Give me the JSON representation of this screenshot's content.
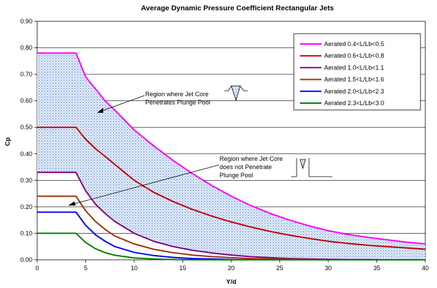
{
  "chart_data": {
    "type": "line",
    "title": "Average Dynamic Pressure Coefficient Rectangular Jets",
    "xlabel": "Y/d",
    "ylabel": "Cp",
    "xlim": [
      0,
      40
    ],
    "ylim": [
      0,
      0.9
    ],
    "xticks": [
      0,
      5,
      10,
      15,
      20,
      25,
      30,
      35,
      40
    ],
    "yticks": [
      0.0,
      0.1,
      0.2,
      0.3,
      0.4,
      0.5,
      0.6,
      0.7,
      0.8,
      0.9
    ],
    "ytick_labels": [
      "0.00",
      "0.10",
      "0.20",
      "0.30",
      "0.40",
      "0.50",
      "0.60",
      "0.70",
      "0.80",
      "0.90"
    ],
    "grid": "horizontal",
    "legend_position": "top-right",
    "x": [
      0,
      4,
      5,
      6,
      7,
      8,
      10,
      12,
      14,
      16,
      18,
      20,
      22,
      24,
      26,
      28,
      30,
      32,
      34,
      36,
      38,
      40
    ],
    "series": [
      {
        "name": "Aerated 0.4<L/Lb<0.5",
        "color": "#ff00ff",
        "values": [
          0.78,
          0.78,
          0.69,
          0.645,
          0.6,
          0.565,
          0.49,
          0.43,
          0.375,
          0.325,
          0.28,
          0.24,
          0.205,
          0.175,
          0.15,
          0.128,
          0.11,
          0.096,
          0.085,
          0.076,
          0.067,
          0.06
        ]
      },
      {
        "name": "Aerated 0.6<L/Lb<0.8",
        "color": "#c00000",
        "values": [
          0.5,
          0.5,
          0.455,
          0.42,
          0.39,
          0.36,
          0.3,
          0.255,
          0.22,
          0.19,
          0.165,
          0.143,
          0.124,
          0.107,
          0.093,
          0.081,
          0.07,
          0.062,
          0.055,
          0.05,
          0.045,
          0.04
        ]
      },
      {
        "name": "Aerated 1.0<L/Lb<1.1",
        "color": "#800080",
        "values": [
          0.33,
          0.33,
          0.26,
          0.21,
          0.175,
          0.145,
          0.1,
          0.07,
          0.05,
          0.036,
          0.026,
          0.018,
          0.012,
          0.008,
          0.005,
          0.003,
          0.002,
          0.001,
          0.001,
          0.0,
          0.0,
          0.0
        ]
      },
      {
        "name": "Aerated 1.5<L/Lb<1.6",
        "color": "#993300",
        "values": [
          0.24,
          0.24,
          0.185,
          0.145,
          0.115,
          0.09,
          0.06,
          0.04,
          0.027,
          0.018,
          0.012,
          0.008,
          0.005,
          0.003,
          0.002,
          0.001,
          0.0,
          0.0,
          0.0,
          0.0,
          0.0,
          0.0
        ]
      },
      {
        "name": "Aerated 2.0<L/Lb<2.3",
        "color": "#0000ff",
        "values": [
          0.18,
          0.18,
          0.13,
          0.095,
          0.07,
          0.05,
          0.028,
          0.016,
          0.009,
          0.005,
          0.003,
          0.001,
          0.0,
          0.0,
          0.0,
          0.0,
          0.0,
          0.0,
          0.0,
          0.0,
          0.0,
          0.0
        ]
      },
      {
        "name": "Aerated 2.3<L/Lb<3.0",
        "color": "#008000",
        "values": [
          0.1,
          0.1,
          0.065,
          0.042,
          0.027,
          0.017,
          0.007,
          0.003,
          0.001,
          0.0,
          0.0,
          0.0,
          0.0,
          0.0,
          0.0,
          0.0,
          0.0,
          0.0,
          0.0,
          0.0,
          0.0,
          0.0
        ]
      }
    ],
    "shaded_region": {
      "upper_series": 0,
      "lower_series": 2,
      "color": "#6fa8dc"
    },
    "annotations": [
      {
        "lines": [
          "Region where Jet Core",
          "Penetrates Plunge Pool"
        ],
        "arrow_to": [
          8,
          0.58
        ]
      },
      {
        "lines": [
          "Region where Jet Core",
          "does not Penetrate",
          "Plunge Pool"
        ],
        "arrow_to": [
          4,
          0.22
        ]
      }
    ]
  }
}
